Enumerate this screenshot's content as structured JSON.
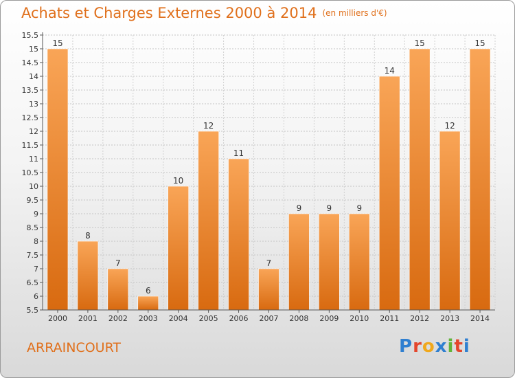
{
  "header": {
    "title": "Achats et Charges Externes 2000 à 2014",
    "subtitle": "(en milliers d'€)"
  },
  "footer": {
    "commune": "ARRAINCOURT"
  },
  "logo": {
    "text": "Proxiti",
    "colors": [
      "#2f7fd0",
      "#e4462c",
      "#f0a81c",
      "#2f7fd0",
      "#62b43a",
      "#e4462c",
      "#2f7fd0"
    ]
  },
  "colors": {
    "bar_top": "#f9a557",
    "bar_bottom": "#d86a10",
    "title": "#e0701c"
  },
  "chart_data": {
    "type": "bar",
    "categories": [
      "2000",
      "2001",
      "2002",
      "2003",
      "2004",
      "2005",
      "2006",
      "2007",
      "2008",
      "2009",
      "2010",
      "2011",
      "2012",
      "2013",
      "2014"
    ],
    "values": [
      15,
      8,
      7,
      6,
      10,
      12,
      11,
      7,
      9,
      9,
      9,
      14,
      15,
      12,
      15
    ],
    "title": "Achats et Charges Externes 2000 à 2014",
    "ylim": [
      5.5,
      15.5
    ],
    "yticks": [
      "5.5",
      "6",
      "6.5",
      "7",
      "7.5",
      "8",
      "8.5",
      "9",
      "9.5",
      "10",
      "10.5",
      "11",
      "11.5",
      "12",
      "12.5",
      "13",
      "13.5",
      "14",
      "14.5",
      "15",
      "15.5"
    ],
    "grid": true,
    "data_labels": true
  }
}
